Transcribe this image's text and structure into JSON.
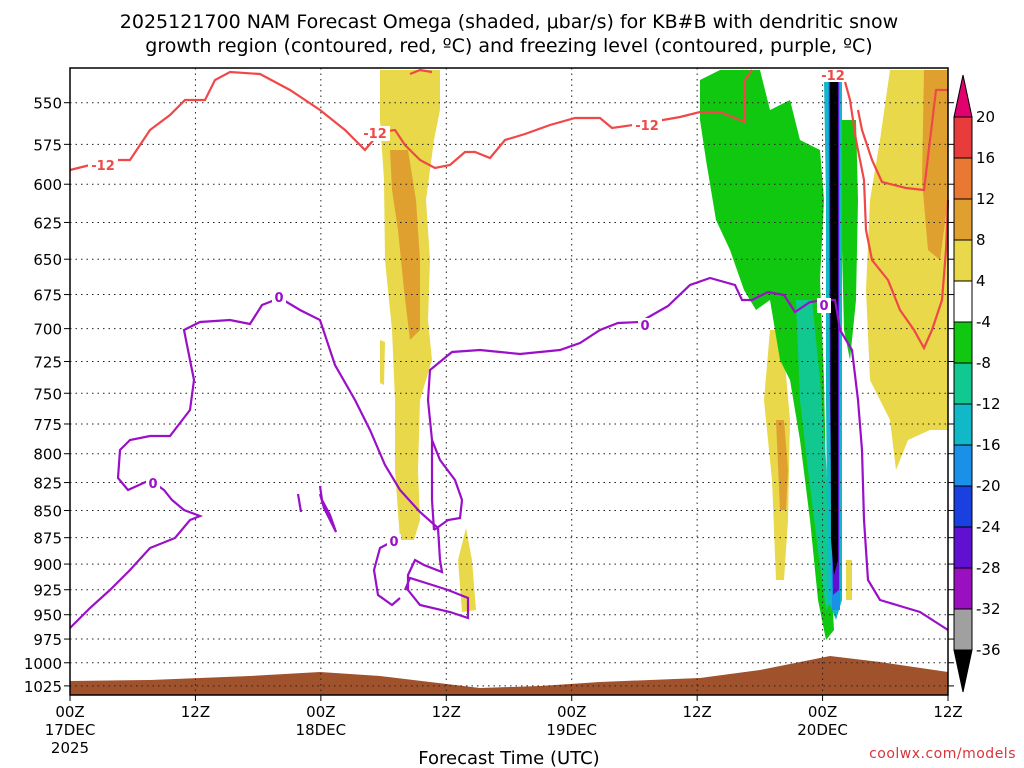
{
  "chart_data": {
    "type": "contour",
    "title_line1": "2025121700 NAM Forecast Omega (shaded, μbar/s) for KB#B with dendritic snow",
    "title_line2": "growth region (contoured, red, ºC) and freezing level (contoured, purple, ºC)",
    "xlabel": "Forecast Time (UTC)",
    "ylabel": "",
    "x_ticks": [
      {
        "hours": 0,
        "label": "00Z",
        "sub1": "17DEC",
        "sub2": "2025"
      },
      {
        "hours": 12,
        "label": "12Z",
        "sub1": "",
        "sub2": ""
      },
      {
        "hours": 24,
        "label": "00Z",
        "sub1": "18DEC",
        "sub2": ""
      },
      {
        "hours": 36,
        "label": "12Z",
        "sub1": "",
        "sub2": ""
      },
      {
        "hours": 48,
        "label": "00Z",
        "sub1": "19DEC",
        "sub2": ""
      },
      {
        "hours": 60,
        "label": "12Z",
        "sub1": "",
        "sub2": ""
      },
      {
        "hours": 72,
        "label": "00Z",
        "sub1": "20DEC",
        "sub2": ""
      },
      {
        "hours": 84,
        "label": "12Z",
        "sub1": "",
        "sub2": ""
      }
    ],
    "xlim_hours": [
      0,
      84
    ],
    "y_ticks": [
      550,
      575,
      600,
      625,
      650,
      675,
      700,
      725,
      750,
      775,
      800,
      825,
      850,
      875,
      900,
      925,
      950,
      975,
      1000,
      1025
    ],
    "ylim_hpa": [
      530,
      1035
    ],
    "y_scale": "log-pressure",
    "grid": true,
    "colorbar": {
      "levels": [
        20,
        16,
        12,
        8,
        4,
        -4,
        -8,
        -12,
        -16,
        -20,
        -24,
        -28,
        -32,
        -36
      ],
      "colors_top_down": [
        "#e0006e",
        "#e83c3c",
        "#e87832",
        "#e0a030",
        "#e8d84a",
        "#ffffff",
        "#10c810",
        "#10c890",
        "#10b8c8",
        "#1a90e8",
        "#1a40e0",
        "#6010d0",
        "#9a10c0",
        "#a0a0a0",
        "#000000"
      ]
    },
    "contours": [
      {
        "name": "dendritic -12C",
        "color": "#f04848",
        "labels": [
          "-12",
          "-12",
          "-12",
          "-12"
        ]
      },
      {
        "name": "freezing level 0C",
        "color": "#9a10c8",
        "labels": [
          "0",
          "0",
          "0",
          "0",
          "0"
        ]
      }
    ],
    "credit": "coolwx.com/models"
  }
}
